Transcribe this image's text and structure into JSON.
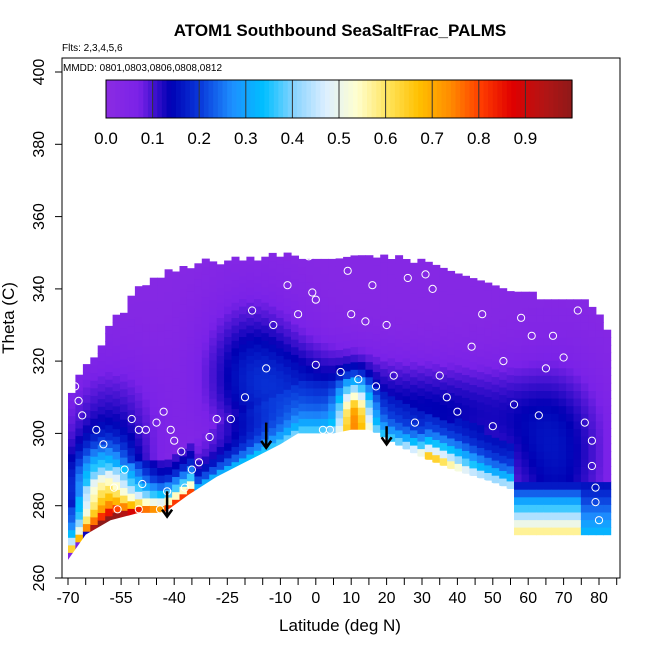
{
  "chart_data": {
    "type": "heatmap",
    "title": "ATOM1 Southbound SeaSaltFrac_PALMS",
    "notes": [
      "Flts: 2,3,4,5,6",
      "MMDD: 0801,0803,0806,0808,0812"
    ],
    "xlabel": "Latitude (deg N)",
    "ylabel": "Theta (C)",
    "xlim": [
      -72,
      85
    ],
    "ylim": [
      260,
      405
    ],
    "x_ticks_labeled": [
      -70,
      -55,
      -40,
      -25,
      -10,
      0,
      10,
      20,
      30,
      40,
      50,
      60,
      70,
      80
    ],
    "x_ticks_minor": [
      -65,
      -60,
      -50,
      -45,
      -35,
      -30,
      -20,
      -15,
      -5,
      5,
      15,
      25,
      35,
      45,
      55,
      65,
      75,
      85
    ],
    "y_ticks": [
      260,
      280,
      300,
      320,
      340,
      360,
      380,
      400
    ],
    "grid": false,
    "colorbar": {
      "ticks": [
        0.0,
        0.1,
        0.2,
        0.3,
        0.4,
        0.5,
        0.6,
        0.7,
        0.8,
        0.9
      ],
      "range": [
        0.0,
        1.0
      ],
      "stops": [
        "#8a2be2",
        "#7a22e8",
        "#0000b4",
        "#0a3cdc",
        "#1e90ff",
        "#00bfff",
        "#8ad4ff",
        "#dcefff",
        "#ffffd0",
        "#ffe45c",
        "#ffc000",
        "#ff8c00",
        "#ff3c00",
        "#e00000",
        "#b41414",
        "#8c1a1a"
      ]
    },
    "upper_boundary": [
      [
        -70,
        311
      ],
      [
        -66,
        318
      ],
      [
        -62,
        322
      ],
      [
        -59,
        330
      ],
      [
        -56,
        332
      ],
      [
        -52,
        339
      ],
      [
        -47,
        342
      ],
      [
        -42,
        344
      ],
      [
        -35,
        346
      ],
      [
        -25,
        347
      ],
      [
        -15,
        348
      ],
      [
        -5,
        348
      ],
      [
        5,
        348
      ],
      [
        15,
        348
      ],
      [
        25,
        347
      ],
      [
        35,
        345
      ],
      [
        45,
        342
      ],
      [
        55,
        339
      ],
      [
        62,
        337
      ],
      [
        70,
        337
      ],
      [
        76,
        336
      ],
      [
        80,
        332
      ],
      [
        82,
        326
      ]
    ],
    "terrain": [
      [
        -70,
        265
      ],
      [
        -65,
        272
      ],
      [
        -58,
        276
      ],
      [
        -50,
        278
      ],
      [
        -43,
        278
      ],
      [
        -36,
        283
      ],
      [
        -28,
        288
      ],
      [
        -20,
        292
      ],
      [
        -10,
        297
      ],
      [
        -5,
        300
      ],
      [
        0,
        300
      ],
      [
        5,
        300
      ],
      [
        10,
        301
      ],
      [
        15,
        301
      ],
      [
        20,
        298
      ],
      [
        28,
        294
      ],
      [
        38,
        290
      ],
      [
        48,
        287
      ],
      [
        56,
        284
      ],
      [
        56,
        272
      ],
      [
        82,
        272
      ]
    ],
    "circle_points": [
      [
        -68,
        313
      ],
      [
        -67,
        309
      ],
      [
        -66,
        305
      ],
      [
        -62,
        301
      ],
      [
        -60,
        297
      ],
      [
        -57,
        285
      ],
      [
        -54,
        290
      ],
      [
        -52,
        304
      ],
      [
        -50,
        301
      ],
      [
        -48,
        301
      ],
      [
        -45,
        303
      ],
      [
        -43,
        306
      ],
      [
        -41,
        301
      ],
      [
        -40,
        298
      ],
      [
        -38,
        295
      ],
      [
        -37,
        285
      ],
      [
        -35,
        290
      ],
      [
        -33,
        292
      ],
      [
        -30,
        299
      ],
      [
        -28,
        304
      ],
      [
        -24,
        304
      ],
      [
        -20,
        310
      ],
      [
        -18,
        334
      ],
      [
        -14,
        318
      ],
      [
        -12,
        330
      ],
      [
        -8,
        341
      ],
      [
        -5,
        333
      ],
      [
        -2,
        349
      ],
      [
        -1,
        339
      ],
      [
        0,
        337
      ],
      [
        0,
        319
      ],
      [
        2,
        301
      ],
      [
        4,
        301
      ],
      [
        7,
        317
      ],
      [
        9,
        345
      ],
      [
        10,
        333
      ],
      [
        12,
        315
      ],
      [
        14,
        331
      ],
      [
        16,
        341
      ],
      [
        17,
        313
      ],
      [
        20,
        330
      ],
      [
        22,
        316
      ],
      [
        26,
        343
      ],
      [
        28,
        303
      ],
      [
        31,
        344
      ],
      [
        33,
        340
      ],
      [
        35,
        316
      ],
      [
        37,
        310
      ],
      [
        40,
        306
      ],
      [
        44,
        324
      ],
      [
        47,
        333
      ],
      [
        50,
        302
      ],
      [
        53,
        320
      ],
      [
        56,
        308
      ],
      [
        58,
        332
      ],
      [
        61,
        327
      ],
      [
        63,
        305
      ],
      [
        65,
        318
      ],
      [
        67,
        327
      ],
      [
        70,
        321
      ],
      [
        74,
        334
      ],
      [
        76,
        303
      ],
      [
        78,
        298
      ],
      [
        78,
        291
      ],
      [
        79,
        285
      ],
      [
        79,
        281
      ],
      [
        80,
        276
      ],
      [
        -56,
        279
      ],
      [
        -50,
        279
      ],
      [
        -44,
        279
      ],
      [
        -42,
        284
      ],
      [
        -49,
        286
      ]
    ],
    "arrows": [
      [
        -42,
        284,
        277
      ],
      [
        -14,
        303,
        296
      ],
      [
        20,
        302,
        297
      ]
    ]
  }
}
